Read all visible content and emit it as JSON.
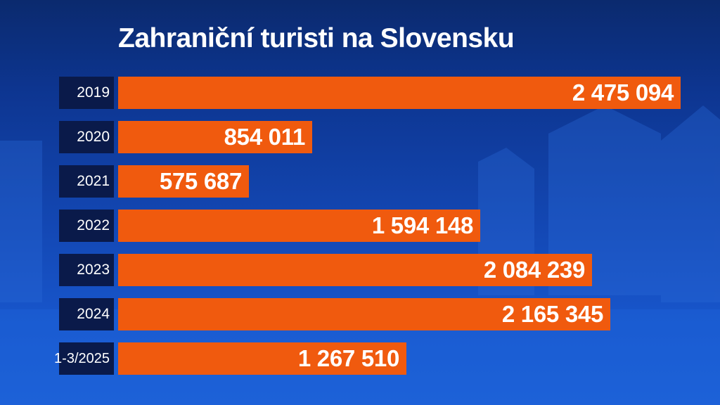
{
  "colors": {
    "background": "#1347b3",
    "bar": "#f05a0e",
    "label_box": "#0a1a4a",
    "text": "#ffffff"
  },
  "chart_data": {
    "type": "bar",
    "orientation": "horizontal",
    "title": "Zahraniční turisti na Slovensku",
    "xlabel": "",
    "ylabel": "",
    "grid": false,
    "categories": [
      "2019",
      "2020",
      "2021",
      "2022",
      "2023",
      "2024",
      "1-3/2025"
    ],
    "values": [
      2475094,
      854011,
      575687,
      1594148,
      2084239,
      2165345,
      1267510
    ],
    "value_labels": [
      "2 475 094",
      "854 011",
      "575 687",
      "1 594 148",
      "2 084 239",
      "2 165 345",
      "1 267 510"
    ]
  }
}
